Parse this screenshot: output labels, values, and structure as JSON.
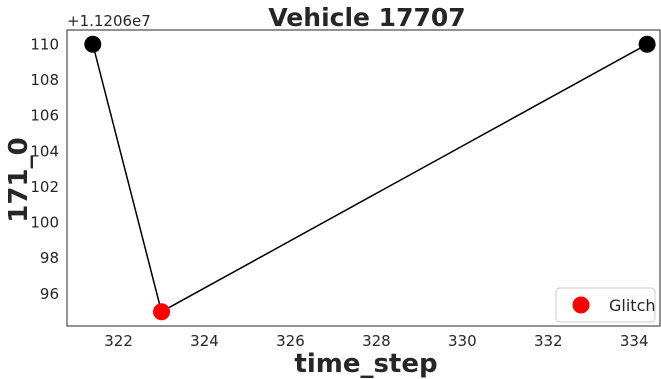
{
  "chart_data": {
    "type": "scatter",
    "title": "Vehicle 17707",
    "xlabel": "time_step",
    "ylabel": "171_0",
    "y_offset_label": "+1.1206e7",
    "xlim": [
      320.8,
      334.6
    ],
    "ylim": [
      94.2,
      110.8
    ],
    "x_ticks": [
      322,
      324,
      326,
      328,
      330,
      332,
      334
    ],
    "y_ticks": [
      96,
      98,
      100,
      102,
      104,
      106,
      108,
      110
    ],
    "line": {
      "color": "#000000",
      "x": [
        321.4,
        323.0,
        334.3
      ],
      "y": [
        110,
        95,
        110
      ]
    },
    "series": [
      {
        "name": "",
        "color": "#000000",
        "x": [
          321.4,
          334.3
        ],
        "y": [
          110,
          110
        ]
      },
      {
        "name": "Glitch",
        "color": "#ff0000",
        "x": [
          323.0
        ],
        "y": [
          95
        ]
      }
    ],
    "legend": {
      "position": "bottom-right",
      "entries": [
        "Glitch"
      ]
    },
    "grid": false
  }
}
